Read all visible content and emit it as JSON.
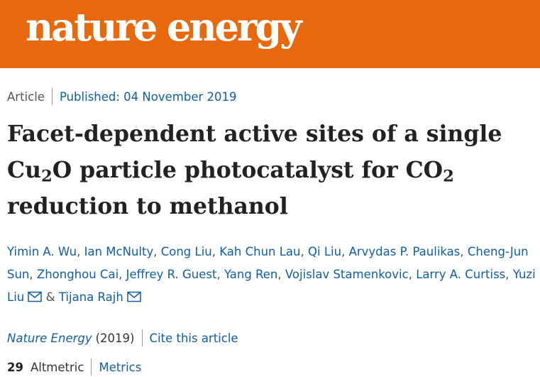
{
  "header": {
    "logo_text": "nature energy",
    "background_color": "#e8690d"
  },
  "article": {
    "type": "Article",
    "published": "Published: 04 November 2019",
    "title": {
      "line1": "Facet-dependent active sites of a single",
      "line2_a": "Cu",
      "line2_sub1": "2",
      "line2_b": "O particle photocatalyst for CO",
      "line2_sub2": "2",
      "line3": "reduction to methanol"
    },
    "authors": [
      "Yimin A. Wu",
      "Ian McNulty",
      "Cong Liu",
      "Kah Chun Lau",
      "Qi Liu",
      "Arvydas P. Paulikas",
      "Cheng-Jun Sun",
      "Zhonghou Cai",
      "Jeffrey R. Guest",
      "Yang Ren",
      "Vojislav Stamenkovic",
      "Larry A. Curtiss",
      "Yuzi Liu",
      "Tijana Rajh"
    ],
    "author_and": "&",
    "journal": "Nature Energy",
    "year": "(2019)",
    "cite_label": "Cite this article",
    "altmetric_score": "29",
    "altmetric_label": "Altmetric",
    "metrics_label": "Metrics"
  },
  "colors": {
    "link": "#0f5ea8",
    "text": "#222222"
  }
}
